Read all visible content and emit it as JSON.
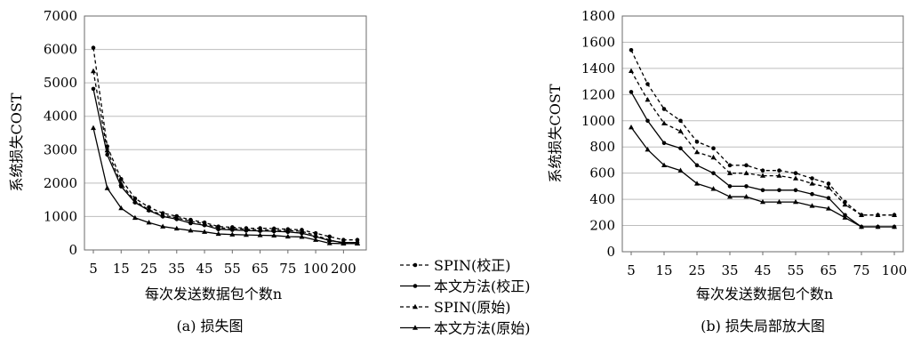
{
  "legend": [
    {
      "label": "SPIN(校正)",
      "dash": "4,3",
      "marker": "dot"
    },
    {
      "label": "本文方法(校正)",
      "dash": "",
      "marker": "dot"
    },
    {
      "label": "SPIN(原始)",
      "dash": "4,3",
      "marker": "tri"
    },
    {
      "label": "本文方法(原始)",
      "dash": "",
      "marker": "tri"
    }
  ],
  "chart_data": [
    {
      "type": "line",
      "caption": "(a) 损失图",
      "xlabel": "每次发送数据包个数n",
      "ylabel": "系统损失COST",
      "ylim": [
        0,
        7000
      ],
      "yticks": [
        0,
        1000,
        2000,
        3000,
        4000,
        5000,
        6000,
        7000
      ],
      "x": [
        5,
        10,
        15,
        20,
        25,
        30,
        35,
        40,
        45,
        50,
        55,
        60,
        65,
        70,
        75,
        80,
        100,
        150,
        200,
        250
      ],
      "xtick_labels": [
        "5",
        "15",
        "25",
        "35",
        "45",
        "55",
        "65",
        "75",
        "100",
        "200"
      ],
      "grid": true,
      "series": [
        {
          "name": "SPIN(校正)",
          "values": [
            6050,
            3100,
            2120,
            1540,
            1280,
            1100,
            1010,
            900,
            820,
            700,
            680,
            650,
            650,
            640,
            620,
            600,
            500,
            400,
            300,
            300
          ]
        },
        {
          "name": "本文方法(校正)",
          "values": [
            4820,
            2850,
            1900,
            1420,
            1180,
            1000,
            920,
            800,
            740,
            620,
            600,
            580,
            570,
            560,
            540,
            500,
            400,
            280,
            220,
            220
          ]
        },
        {
          "name": "SPIN(原始)",
          "values": [
            5350,
            2980,
            1980,
            1460,
            1200,
            1040,
            960,
            860,
            780,
            660,
            640,
            620,
            600,
            590,
            580,
            560,
            430,
            300,
            200,
            200
          ]
        },
        {
          "name": "本文方法(原始)",
          "values": [
            3650,
            1850,
            1250,
            960,
            820,
            700,
            640,
            580,
            540,
            480,
            460,
            450,
            440,
            430,
            400,
            390,
            300,
            200,
            190,
            190
          ]
        }
      ]
    },
    {
      "type": "line",
      "caption": "(b) 损失局部放大图",
      "xlabel": "每次发送数据包个数n",
      "ylabel": "系统损失COST",
      "ylim": [
        0,
        1800
      ],
      "yticks": [
        0,
        200,
        400,
        600,
        800,
        1000,
        1200,
        1400,
        1600,
        1800
      ],
      "x": [
        5,
        10,
        15,
        20,
        25,
        30,
        35,
        40,
        45,
        50,
        55,
        60,
        65,
        70,
        75,
        80,
        100
      ],
      "xtick_labels": [
        "5",
        "15",
        "25",
        "35",
        "45",
        "55",
        "65",
        "75",
        "100"
      ],
      "grid": true,
      "series": [
        {
          "name": "SPIN(校正)",
          "values": [
            1540,
            1280,
            1090,
            1000,
            840,
            790,
            660,
            660,
            620,
            620,
            600,
            560,
            520,
            380,
            280,
            280,
            280
          ]
        },
        {
          "name": "本文方法(校正)",
          "values": [
            1220,
            1000,
            830,
            790,
            660,
            600,
            500,
            500,
            470,
            470,
            470,
            440,
            410,
            280,
            190,
            190,
            190
          ]
        },
        {
          "name": "SPIN(原始)",
          "values": [
            1380,
            1160,
            980,
            920,
            760,
            720,
            600,
            600,
            580,
            580,
            560,
            520,
            490,
            360,
            280,
            280,
            280
          ]
        },
        {
          "name": "本文方法(原始)",
          "values": [
            950,
            780,
            660,
            620,
            520,
            480,
            420,
            420,
            380,
            380,
            380,
            350,
            330,
            260,
            190,
            190,
            190
          ]
        }
      ]
    }
  ]
}
